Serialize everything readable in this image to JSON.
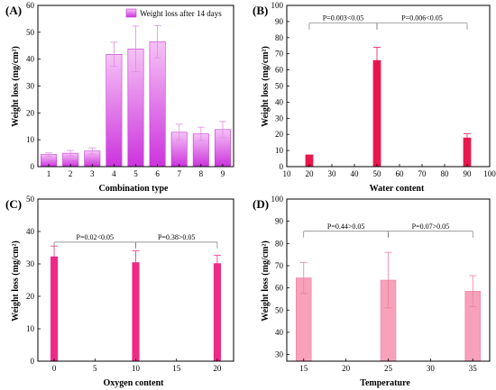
{
  "chart_data": [
    {
      "panel": "(A)",
      "type": "bar",
      "xlabel": "Combination type",
      "ylabel": "Weight loss (mg/cm²)",
      "xlim": [
        0.5,
        9.5
      ],
      "ylim": [
        0,
        60
      ],
      "yticks": [
        0,
        10,
        20,
        30,
        40,
        50,
        60
      ],
      "xticks": [
        1,
        2,
        3,
        4,
        5,
        6,
        7,
        8,
        9
      ],
      "bar_width": 0.72,
      "gradient": [
        "#f6c2f6",
        "#cc33dd"
      ],
      "legend": "Weight loss after 14 days",
      "legend_position": "top-right",
      "x": [
        1,
        2,
        3,
        4,
        5,
        6,
        7,
        8,
        9
      ],
      "values": [
        4.5,
        5.0,
        5.8,
        41.8,
        43.8,
        46.5,
        12.8,
        12.2,
        13.8
      ],
      "errors": [
        0.6,
        1.0,
        1.2,
        4.5,
        8.5,
        6.0,
        3.0,
        2.5,
        3.0
      ],
      "significance": []
    },
    {
      "panel": "(B)",
      "type": "bar",
      "xlabel": "Water content",
      "ylabel": "Weight loss (mg/cm²)",
      "xlim": [
        10,
        100
      ],
      "ylim": [
        0,
        100
      ],
      "yticks": [
        0,
        10,
        20,
        30,
        40,
        50,
        60,
        70,
        80,
        90,
        100
      ],
      "xticks": [
        10,
        20,
        30,
        40,
        50,
        60,
        70,
        80,
        90,
        100
      ],
      "bar_width": 3.5,
      "color": "#e8174e",
      "x": [
        20,
        50,
        90
      ],
      "values": [
        7.5,
        66,
        18
      ],
      "errors": [
        0,
        8,
        2.5
      ],
      "significance": [
        {
          "from": 20,
          "to": 50,
          "y": 89,
          "text": "P=0.003<0.05"
        },
        {
          "from": 50,
          "to": 90,
          "y": 89,
          "text": "P=0.006<0.05"
        }
      ]
    },
    {
      "panel": "(C)",
      "type": "bar",
      "xlabel": "Oxygen content",
      "ylabel": "Weight loss (mg/cm²)",
      "xlim": [
        -2,
        22
      ],
      "ylim": [
        0,
        50
      ],
      "yticks": [
        0,
        10,
        20,
        30,
        40,
        50
      ],
      "xticks": [
        0,
        5,
        10,
        15,
        20
      ],
      "bar_width": 0.9,
      "color": "#ee2a87",
      "x": [
        0,
        10,
        20
      ],
      "values": [
        32.3,
        30.5,
        30.2
      ],
      "errors": [
        3.2,
        3.5,
        2.5
      ],
      "significance": [
        {
          "from": 0,
          "to": 10,
          "y": 36.7,
          "text": "P=0.02<0.05"
        },
        {
          "from": 10,
          "to": 20,
          "y": 36.7,
          "text": "P=0.38>0.05"
        }
      ]
    },
    {
      "panel": "(D)",
      "type": "bar",
      "xlabel": "Temperature",
      "ylabel": "Weight loss (mg/cm²)",
      "xlim": [
        13,
        37
      ],
      "ylim": [
        27,
        100
      ],
      "yticks": [
        30,
        40,
        50,
        60,
        70,
        80,
        90,
        100
      ],
      "xticks": [
        15,
        20,
        25,
        30,
        35
      ],
      "bar_width": 1.8,
      "color": "#f7a1bb",
      "stroke": "#ec7fa0",
      "x": [
        15,
        25,
        35
      ],
      "values": [
        64.5,
        63.5,
        58.5
      ],
      "errors": [
        7,
        12.5,
        7
      ],
      "significance": [
        {
          "from": 15,
          "to": 25,
          "y": 85.5,
          "text": "P=0.44>0.05"
        },
        {
          "from": 25,
          "to": 35,
          "y": 85.5,
          "text": "P=0.07>0.05"
        }
      ]
    }
  ]
}
